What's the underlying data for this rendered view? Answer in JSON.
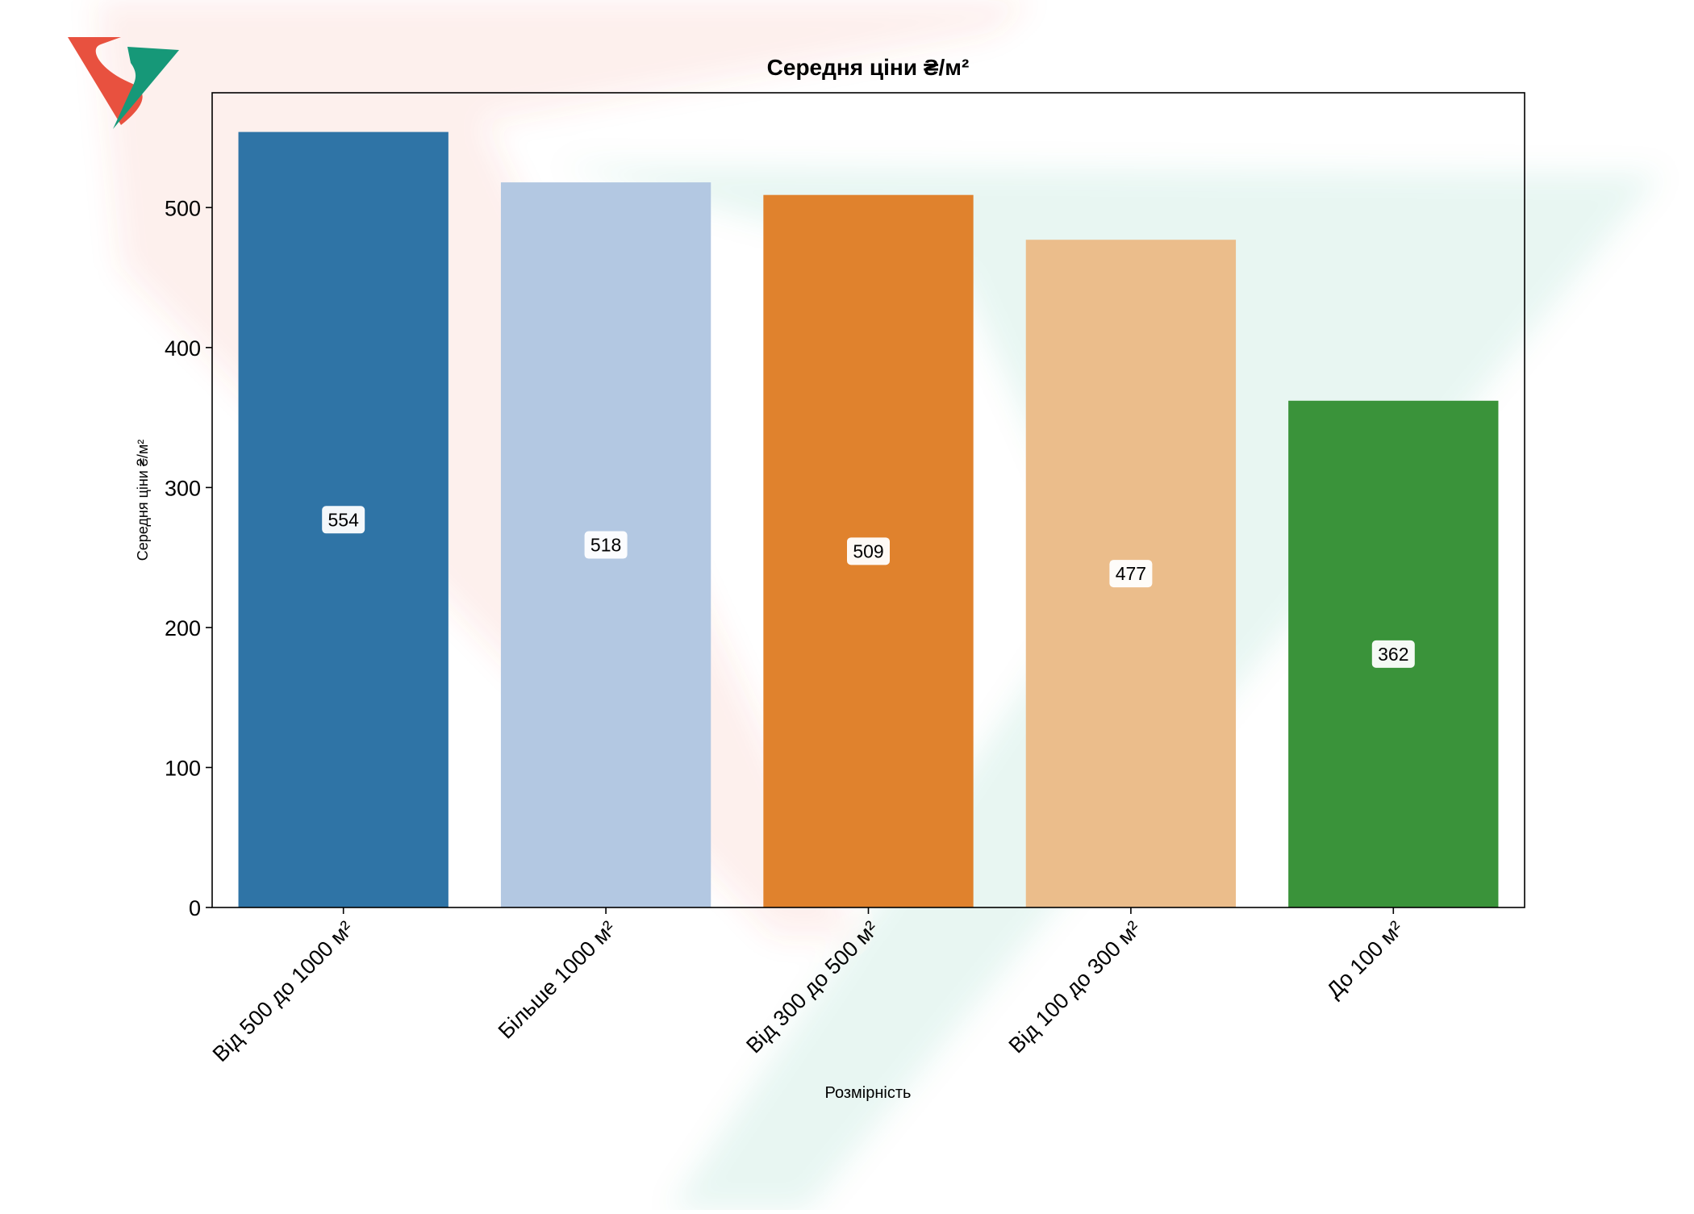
{
  "chart_data": {
    "type": "bar",
    "title": "Середня ціни ₴/м²",
    "xlabel": "Розмірність",
    "ylabel": "Середня ціни ₴/м²",
    "categories": [
      "Від 500 до 1000 м²",
      "Більше 1000 м²",
      "Від 300 до 500 м²",
      "Від 100 до 300 м²",
      "До  100 м²"
    ],
    "values": [
      554,
      518,
      509,
      477,
      362
    ],
    "value_labels": [
      "554",
      "518",
      "509",
      "477",
      "362"
    ],
    "bar_colors": [
      "#2f74a6",
      "#b3c8e2",
      "#e0822d",
      "#ebbd8b",
      "#3a933a"
    ],
    "ylim": [
      0,
      582
    ],
    "yticks": [
      0,
      100,
      200,
      300,
      400,
      500
    ],
    "ytick_labels": [
      "0",
      "100",
      "200",
      "300",
      "400",
      "500"
    ],
    "grid": false,
    "legend": "none"
  },
  "watermark": {
    "colors": {
      "red": "#e8513f",
      "green": "#169878"
    }
  }
}
